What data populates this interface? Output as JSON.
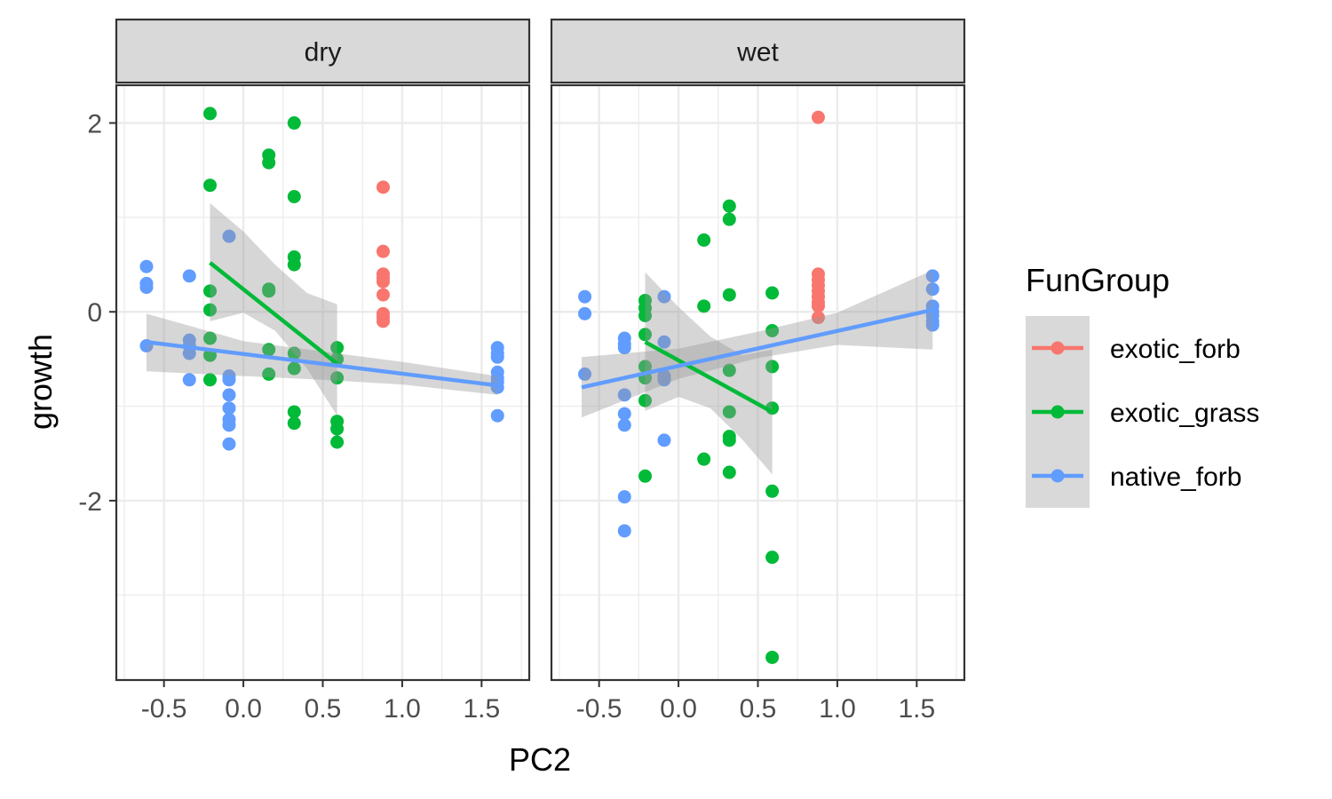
{
  "chart_data": {
    "type": "scatter",
    "xlabel": "PC2",
    "ylabel": "growth",
    "xlim": [
      -0.8,
      1.8
    ],
    "ylim": [
      -3.9,
      2.4
    ],
    "x_ticks": [
      -0.5,
      0.0,
      0.5,
      1.0,
      1.5
    ],
    "x_tick_labels": [
      "-0.5",
      "0.0",
      "0.5",
      "1.0",
      "1.5"
    ],
    "y_ticks": [
      2,
      0,
      -2
    ],
    "y_tick_labels": [
      "2",
      "0",
      "-2"
    ],
    "grid": true,
    "legend": {
      "title": "FunGroup",
      "placement": "right",
      "entries": [
        "exotic_forb",
        "exotic_grass",
        "native_forb"
      ]
    },
    "colors": {
      "exotic_forb": "#f8766d",
      "exotic_grass": "#00ba38",
      "native_forb": "#619cff",
      "ribbon": "#999999",
      "strip_bg": "#d9d9d9",
      "grid": "#ebebeb",
      "border": "#333333"
    },
    "panels": [
      {
        "label": "dry",
        "series": [
          {
            "name": "exotic_forb",
            "points": [
              [
                0.88,
                1.32
              ],
              [
                0.88,
                0.64
              ],
              [
                0.88,
                0.4
              ],
              [
                0.88,
                0.36
              ],
              [
                0.88,
                0.32
              ],
              [
                0.88,
                0.18
              ],
              [
                0.88,
                -0.02
              ],
              [
                0.88,
                -0.06
              ],
              [
                0.88,
                -0.1
              ]
            ],
            "fit": null
          },
          {
            "name": "exotic_grass",
            "points": [
              [
                -0.21,
                2.1
              ],
              [
                -0.21,
                1.34
              ],
              [
                -0.21,
                0.22
              ],
              [
                -0.21,
                0.02
              ],
              [
                -0.21,
                -0.28
              ],
              [
                -0.21,
                -0.46
              ],
              [
                -0.21,
                -0.72
              ],
              [
                0.16,
                1.66
              ],
              [
                0.16,
                1.58
              ],
              [
                0.16,
                0.24
              ],
              [
                0.16,
                0.22
              ],
              [
                0.16,
                -0.4
              ],
              [
                0.16,
                -0.66
              ],
              [
                0.32,
                2.0
              ],
              [
                0.32,
                1.22
              ],
              [
                0.32,
                0.58
              ],
              [
                0.32,
                0.5
              ],
              [
                0.32,
                -0.44
              ],
              [
                0.32,
                -0.6
              ],
              [
                0.32,
                -1.06
              ],
              [
                0.32,
                -1.18
              ],
              [
                0.59,
                -0.38
              ],
              [
                0.59,
                -0.5
              ],
              [
                0.59,
                -0.7
              ],
              [
                0.59,
                -1.16
              ],
              [
                0.59,
                -1.24
              ],
              [
                0.59,
                -1.38
              ]
            ],
            "fit": {
              "x": [
                -0.21,
                0.59
              ],
              "y": [
                0.52,
                -0.55
              ],
              "ribbon": {
                "x": [
                  -0.21,
                  0.0,
                  0.2,
                  0.4,
                  0.59
                ],
                "lower": [
                  -0.1,
                  -0.01,
                  -0.2,
                  -0.6,
                  -1.1
                ],
                "upper": [
                  1.15,
                  0.85,
                  0.5,
                  0.2,
                  0.08
                ]
              }
            }
          },
          {
            "name": "native_forb",
            "points": [
              [
                -0.61,
                0.48
              ],
              [
                -0.61,
                0.3
              ],
              [
                -0.61,
                0.26
              ],
              [
                -0.61,
                -0.36
              ],
              [
                -0.34,
                0.38
              ],
              [
                -0.34,
                -0.3
              ],
              [
                -0.34,
                -0.36
              ],
              [
                -0.34,
                -0.44
              ],
              [
                -0.34,
                -0.72
              ],
              [
                -0.09,
                0.8
              ],
              [
                -0.09,
                -0.68
              ],
              [
                -0.09,
                -0.72
              ],
              [
                -0.09,
                -0.88
              ],
              [
                -0.09,
                -1.02
              ],
              [
                -0.09,
                -1.14
              ],
              [
                -0.09,
                -1.2
              ],
              [
                -0.09,
                -1.4
              ],
              [
                1.6,
                -0.38
              ],
              [
                1.6,
                -0.44
              ],
              [
                1.6,
                -0.48
              ],
              [
                1.6,
                -0.64
              ],
              [
                1.6,
                -0.7
              ],
              [
                1.6,
                -0.74
              ],
              [
                1.6,
                -0.8
              ],
              [
                1.6,
                -1.1
              ]
            ],
            "fit": {
              "x": [
                -0.61,
                1.6
              ],
              "y": [
                -0.32,
                -0.78
              ],
              "ribbon": {
                "x": [
                  -0.61,
                  0.0,
                  0.5,
                  1.0,
                  1.6
                ],
                "lower": [
                  -0.63,
                  -0.68,
                  -0.72,
                  -0.77,
                  -0.88
                ],
                "upper": [
                  -0.02,
                  -0.31,
                  -0.42,
                  -0.53,
                  -0.68
                ]
              }
            }
          }
        ]
      },
      {
        "label": "wet",
        "series": [
          {
            "name": "exotic_forb",
            "points": [
              [
                0.88,
                2.06
              ],
              [
                0.88,
                0.4
              ],
              [
                0.88,
                0.34
              ],
              [
                0.88,
                0.28
              ],
              [
                0.88,
                0.22
              ],
              [
                0.88,
                0.16
              ],
              [
                0.88,
                0.1
              ],
              [
                0.88,
                0.06
              ],
              [
                0.88,
                -0.06
              ]
            ],
            "fit": null
          },
          {
            "name": "exotic_grass",
            "points": [
              [
                -0.21,
                0.12
              ],
              [
                -0.21,
                0.04
              ],
              [
                -0.21,
                -0.04
              ],
              [
                -0.21,
                -0.24
              ],
              [
                -0.21,
                -0.58
              ],
              [
                -0.21,
                -0.7
              ],
              [
                -0.21,
                -0.94
              ],
              [
                -0.21,
                -1.74
              ],
              [
                0.16,
                0.76
              ],
              [
                0.16,
                0.06
              ],
              [
                0.16,
                -1.56
              ],
              [
                0.32,
                1.12
              ],
              [
                0.32,
                0.98
              ],
              [
                0.32,
                0.18
              ],
              [
                0.32,
                -0.62
              ],
              [
                0.32,
                -1.06
              ],
              [
                0.32,
                -1.32
              ],
              [
                0.32,
                -1.36
              ],
              [
                0.32,
                -1.7
              ],
              [
                0.59,
                0.2
              ],
              [
                0.59,
                -0.2
              ],
              [
                0.59,
                -0.58
              ],
              [
                0.59,
                -1.02
              ],
              [
                0.59,
                -1.9
              ],
              [
                0.59,
                -2.6
              ],
              [
                0.59,
                -3.66
              ]
            ],
            "fit": {
              "x": [
                -0.21,
                0.59
              ],
              "y": [
                -0.32,
                -1.06
              ],
              "ribbon": {
                "x": [
                  -0.21,
                  0.0,
                  0.2,
                  0.4,
                  0.59
                ],
                "lower": [
                  -1.05,
                  -0.9,
                  -1.02,
                  -1.35,
                  -1.72
                ],
                "upper": [
                  0.42,
                  0.05,
                  -0.26,
                  -0.46,
                  -0.4
                ]
              }
            }
          },
          {
            "name": "native_forb",
            "points": [
              [
                -0.59,
                0.16
              ],
              [
                -0.59,
                -0.02
              ],
              [
                -0.59,
                -0.66
              ],
              [
                -0.34,
                -0.28
              ],
              [
                -0.34,
                -0.34
              ],
              [
                -0.34,
                -0.38
              ],
              [
                -0.34,
                -0.88
              ],
              [
                -0.34,
                -1.08
              ],
              [
                -0.34,
                -1.2
              ],
              [
                -0.34,
                -1.96
              ],
              [
                -0.34,
                -2.32
              ],
              [
                -0.09,
                0.16
              ],
              [
                -0.09,
                -0.32
              ],
              [
                -0.09,
                -0.68
              ],
              [
                -0.09,
                -0.72
              ],
              [
                -0.09,
                -1.36
              ],
              [
                1.6,
                0.38
              ],
              [
                1.6,
                0.24
              ],
              [
                1.6,
                0.06
              ],
              [
                1.6,
                0.0
              ],
              [
                1.6,
                -0.04
              ],
              [
                1.6,
                -0.1
              ],
              [
                1.6,
                -0.14
              ]
            ],
            "fit": {
              "x": [
                -0.61,
                1.6
              ],
              "y": [
                -0.8,
                0.02
              ],
              "ribbon": {
                "x": [
                  -0.61,
                  0.0,
                  0.5,
                  1.0,
                  1.6
                ],
                "lower": [
                  -1.12,
                  -0.71,
                  -0.49,
                  -0.35,
                  -0.4
                ],
                "upper": [
                  -0.48,
                  -0.39,
                  -0.21,
                  -0.01,
                  0.44
                ]
              }
            }
          }
        ]
      }
    ]
  }
}
